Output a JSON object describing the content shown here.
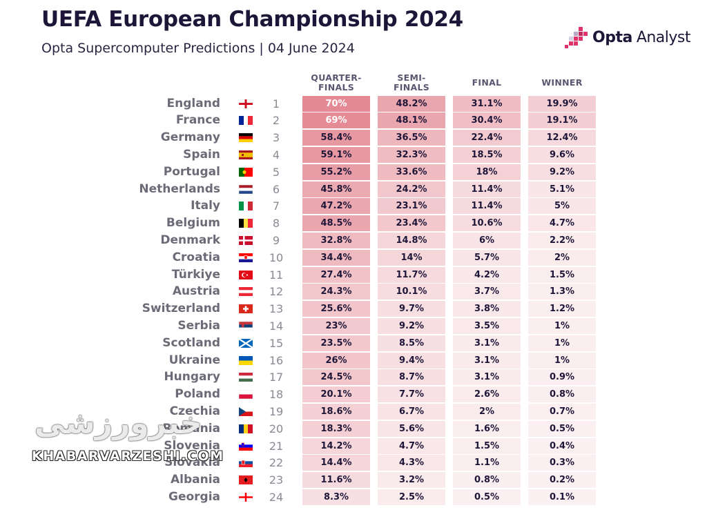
{
  "header": {
    "title": "UEFA European Championship 2024",
    "subtitle": "Opta Supercomputer Predictions | 04 June 2024",
    "logo_opta": "Opta",
    "logo_analyst": "Analyst"
  },
  "watermark": {
    "persian": "خبرورزشی",
    "latin": "KHABARVARZESHI.COM"
  },
  "colors": {
    "cell_max": "#e48a95",
    "cell_min": "#fbf1f2",
    "text_dark": "#1e1638",
    "brand": "#e0336a"
  },
  "chart_data": {
    "type": "table",
    "title": "UEFA European Championship 2024",
    "subtitle": "Opta Supercomputer Predictions | 04 June 2024",
    "columns": [
      {
        "key": "qf",
        "label_lines": [
          "QUARTER-",
          "FINALS"
        ]
      },
      {
        "key": "sf",
        "label_lines": [
          "SEMI-",
          "FINALS"
        ]
      },
      {
        "key": "final",
        "label_lines": [
          "FINAL"
        ]
      },
      {
        "key": "winner",
        "label_lines": [
          "WINNER"
        ]
      }
    ],
    "rows": [
      {
        "rank": 1,
        "team": "England",
        "flag": "england",
        "qf": "70%",
        "sf": "48.2%",
        "final": "31.1%",
        "winner": "19.9%"
      },
      {
        "rank": 2,
        "team": "France",
        "flag": "france",
        "qf": "69%",
        "sf": "48.1%",
        "final": "30.4%",
        "winner": "19.1%"
      },
      {
        "rank": 3,
        "team": "Germany",
        "flag": "germany",
        "qf": "58.4%",
        "sf": "36.5%",
        "final": "22.4%",
        "winner": "12.4%"
      },
      {
        "rank": 4,
        "team": "Spain",
        "flag": "spain",
        "qf": "59.1%",
        "sf": "32.3%",
        "final": "18.5%",
        "winner": "9.6%"
      },
      {
        "rank": 5,
        "team": "Portugal",
        "flag": "portugal",
        "qf": "55.2%",
        "sf": "33.6%",
        "final": "18%",
        "winner": "9.2%"
      },
      {
        "rank": 6,
        "team": "Netherlands",
        "flag": "netherlands",
        "qf": "45.8%",
        "sf": "24.2%",
        "final": "11.4%",
        "winner": "5.1%"
      },
      {
        "rank": 7,
        "team": "Italy",
        "flag": "italy",
        "qf": "47.2%",
        "sf": "23.1%",
        "final": "11.4%",
        "winner": "5%"
      },
      {
        "rank": 8,
        "team": "Belgium",
        "flag": "belgium",
        "qf": "48.5%",
        "sf": "23.4%",
        "final": "10.6%",
        "winner": "4.7%"
      },
      {
        "rank": 9,
        "team": "Denmark",
        "flag": "denmark",
        "qf": "32.8%",
        "sf": "14.8%",
        "final": "6%",
        "winner": "2.2%"
      },
      {
        "rank": 10,
        "team": "Croatia",
        "flag": "croatia",
        "qf": "34.4%",
        "sf": "14%",
        "final": "5.7%",
        "winner": "2%"
      },
      {
        "rank": 11,
        "team": "Türkiye",
        "flag": "turkiye",
        "qf": "27.4%",
        "sf": "11.7%",
        "final": "4.2%",
        "winner": "1.5%"
      },
      {
        "rank": 12,
        "team": "Austria",
        "flag": "austria",
        "qf": "24.3%",
        "sf": "10.1%",
        "final": "3.7%",
        "winner": "1.3%"
      },
      {
        "rank": 13,
        "team": "Switzerland",
        "flag": "switzerland",
        "qf": "25.6%",
        "sf": "9.7%",
        "final": "3.8%",
        "winner": "1.2%"
      },
      {
        "rank": 14,
        "team": "Serbia",
        "flag": "serbia",
        "qf": "23%",
        "sf": "9.2%",
        "final": "3.5%",
        "winner": "1%"
      },
      {
        "rank": 15,
        "team": "Scotland",
        "flag": "scotland",
        "qf": "23.5%",
        "sf": "8.5%",
        "final": "3.1%",
        "winner": "1%"
      },
      {
        "rank": 16,
        "team": "Ukraine",
        "flag": "ukraine",
        "qf": "26%",
        "sf": "9.4%",
        "final": "3.1%",
        "winner": "1%"
      },
      {
        "rank": 17,
        "team": "Hungary",
        "flag": "hungary",
        "qf": "24.5%",
        "sf": "8.7%",
        "final": "3.1%",
        "winner": "0.9%"
      },
      {
        "rank": 18,
        "team": "Poland",
        "flag": "poland",
        "qf": "20.1%",
        "sf": "7.7%",
        "final": "2.6%",
        "winner": "0.8%"
      },
      {
        "rank": 19,
        "team": "Czechia",
        "flag": "czechia",
        "qf": "18.6%",
        "sf": "6.7%",
        "final": "2%",
        "winner": "0.7%"
      },
      {
        "rank": 20,
        "team": "Romania",
        "flag": "romania",
        "qf": "18.3%",
        "sf": "5.6%",
        "final": "1.6%",
        "winner": "0.5%"
      },
      {
        "rank": 21,
        "team": "Slovenia",
        "flag": "slovenia",
        "qf": "14.2%",
        "sf": "4.7%",
        "final": "1.5%",
        "winner": "0.4%"
      },
      {
        "rank": 22,
        "team": "Slovakia",
        "flag": "slovakia",
        "qf": "14.4%",
        "sf": "4.3%",
        "final": "1.1%",
        "winner": "0.3%"
      },
      {
        "rank": 23,
        "team": "Albania",
        "flag": "albania",
        "qf": "11.6%",
        "sf": "3.2%",
        "final": "0.8%",
        "winner": "0.2%"
      },
      {
        "rank": 24,
        "team": "Georgia",
        "flag": "georgia",
        "qf": "8.3%",
        "sf": "2.5%",
        "final": "0.5%",
        "winner": "0.1%"
      }
    ]
  }
}
